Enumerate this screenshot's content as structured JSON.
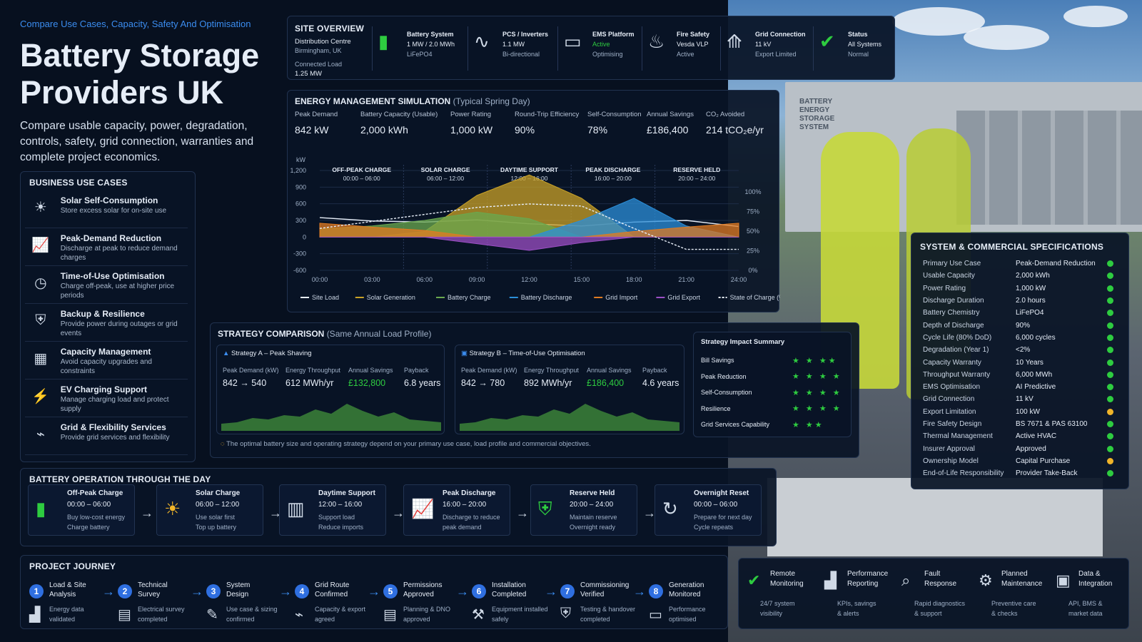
{
  "header": {
    "kicker": "Compare Use Cases, Capacity, Safety And Optimisation",
    "title": "Battery Storage Providers UK",
    "intro": "Compare usable capacity, power, degradation, controls, safety, grid connection, warranties and complete project economics."
  },
  "use_cases": {
    "title": "BUSINESS USE CASES",
    "items": [
      {
        "icon": "sun-icon",
        "title": "Solar Self-Consumption",
        "desc": "Store excess solar for on-site use"
      },
      {
        "icon": "peak-chart-icon",
        "title": "Peak-Demand Reduction",
        "desc": "Discharge at peak to reduce demand charges"
      },
      {
        "icon": "clock-icon",
        "title": "Time-of-Use Optimisation",
        "desc": "Charge off-peak, use at higher price periods"
      },
      {
        "icon": "shield-icon",
        "title": "Backup & Resilience",
        "desc": "Provide power during outages or grid events"
      },
      {
        "icon": "capacity-icon",
        "title": "Capacity Management",
        "desc": "Avoid capacity upgrades and constraints"
      },
      {
        "icon": "ev-charger-icon",
        "title": "EV Charging Support",
        "desc": "Manage charging load and protect supply"
      },
      {
        "icon": "grid-icon",
        "title": "Grid & Flexibility Services",
        "desc": "Provide grid services and flexibility"
      }
    ]
  },
  "site": {
    "title": "SITE OVERVIEW",
    "name": "Distribution Centre",
    "location": "Birmingham, UK",
    "load_label": "Connected Load",
    "load": "1.25 MW",
    "cells": [
      {
        "icon": "battery-icon",
        "title": "Battery System",
        "l1": "1 MW / 2.0 MWh",
        "l2": "LiFePO4"
      },
      {
        "icon": "inverter-icon",
        "title": "PCS / Inverters",
        "l1": "1.1 MW",
        "l2": "Bi-directional"
      },
      {
        "icon": "monitor-icon",
        "title": "EMS Platform",
        "l1": "Active",
        "l2": "Optimising"
      },
      {
        "icon": "fire-icon",
        "title": "Fire Safety",
        "l1": "Vesda VLP",
        "l2": "Active"
      },
      {
        "icon": "pylon-icon",
        "title": "Grid Connection",
        "l1": "11 kV",
        "l2": "Export Limited"
      },
      {
        "icon": "check-circle-icon",
        "title": "Status",
        "l1": "All Systems",
        "l2": "Normal"
      }
    ]
  },
  "sim": {
    "title": "ENERGY MANAGEMENT SIMULATION",
    "subtitle": "(Typical Spring Day)",
    "metrics": [
      {
        "label": "Peak Demand",
        "value": "842 kW"
      },
      {
        "label": "Battery Capacity (Usable)",
        "value": "2,000 kWh"
      },
      {
        "label": "Power Rating",
        "value": "1,000 kW"
      },
      {
        "label": "Round-Trip Efficiency",
        "value": "90%"
      },
      {
        "label": "Self-Consumption",
        "value": "78%"
      },
      {
        "label": "Annual Savings",
        "value": "£186,400"
      },
      {
        "label": "CO₂ Avoided",
        "value": "214 tCO₂e/yr"
      }
    ],
    "phases": [
      {
        "name": "OFF-PEAK CHARGE",
        "time": "00:00 – 06:00"
      },
      {
        "name": "SOLAR CHARGE",
        "time": "06:00 – 12:00"
      },
      {
        "name": "DAYTIME SUPPORT",
        "time": "12:00 – 16:00"
      },
      {
        "name": "PEAK DISCHARGE",
        "time": "16:00 – 20:00"
      },
      {
        "name": "RESERVE HELD",
        "time": "20:00 – 24:00"
      }
    ],
    "legend": [
      "Site Load",
      "Solar Generation",
      "Battery Charge",
      "Battery Discharge",
      "Grid Import",
      "Grid Export",
      "State of Charge (%)"
    ]
  },
  "chart_data": {
    "type": "area",
    "ylabel": "kW",
    "ylim": [
      -600,
      1200
    ],
    "yticks": [
      "1,200",
      "900",
      "600",
      "300",
      "0",
      "-300",
      "-600"
    ],
    "y2ticks": [
      "100%",
      "75%",
      "50%",
      "25%",
      "0%"
    ],
    "x": [
      "00:00",
      "03:00",
      "06:00",
      "09:00",
      "12:00",
      "15:00",
      "18:00",
      "21:00",
      "24:00"
    ],
    "series": [
      {
        "name": "Site Load",
        "color": "#e6edf7",
        "values": [
          350,
          290,
          270,
          310,
          240,
          200,
          270,
          300,
          190
        ]
      },
      {
        "name": "Solar Generation",
        "color": "#c9a227",
        "values": [
          0,
          0,
          100,
          750,
          1120,
          700,
          0,
          0,
          0
        ]
      },
      {
        "name": "Battery Charge",
        "color": "#6aa84f",
        "values": [
          150,
          200,
          300,
          450,
          330,
          0,
          0,
          0,
          0
        ]
      },
      {
        "name": "Battery Discharge",
        "color": "#2b8fd9",
        "values": [
          0,
          0,
          0,
          0,
          0,
          300,
          700,
          200,
          0
        ]
      },
      {
        "name": "Grid Import",
        "color": "#e07b22",
        "values": [
          250,
          180,
          120,
          0,
          0,
          0,
          100,
          180,
          250
        ]
      },
      {
        "name": "Grid Export",
        "color": "#9b4fc4",
        "values": [
          0,
          0,
          0,
          -120,
          -240,
          -100,
          0,
          0,
          0
        ]
      },
      {
        "name": "State of Charge (%)",
        "color": "#e6edf7",
        "values": [
          60,
          70,
          80,
          90,
          95,
          92,
          60,
          30,
          30
        ]
      }
    ]
  },
  "strategy": {
    "title": "STRATEGY COMPARISON",
    "subtitle": "(Same Annual Load Profile)",
    "a": {
      "title": "Strategy A – Peak Shaving",
      "labels": [
        "Peak Demand (kW)",
        "Energy Throughput",
        "Annual Savings",
        "Payback"
      ],
      "values": [
        "842 → 540",
        "612 MWh/yr",
        "£132,800",
        "6.8 years"
      ]
    },
    "b": {
      "title": "Strategy B – Time-of-Use Optimisation",
      "labels": [
        "Peak Demand (kW)",
        "Energy Throughput",
        "Annual Savings",
        "Payback"
      ],
      "values": [
        "842 → 780",
        "892 MWh/yr",
        "£186,400",
        "4.6 years"
      ]
    },
    "note": "The optimal battery size and operating strategy depend on your primary use case, load profile and commercial objectives.",
    "impact": {
      "title": "Strategy Impact Summary",
      "rows": [
        {
          "label": "Bill Savings",
          "stars": "★ ★ ★★"
        },
        {
          "label": "Peak Reduction",
          "stars": "★ ★ ★ ★"
        },
        {
          "label": "Self-Consumption",
          "stars": "★ ★ ★ ★"
        },
        {
          "label": "Resilience",
          "stars": "★ ★ ★ ★"
        },
        {
          "label": "Grid Services Capability",
          "stars": "★ ★★"
        }
      ]
    }
  },
  "specs": {
    "title": "SYSTEM & COMMERCIAL SPECIFICATIONS",
    "rows": [
      {
        "k": "Primary Use Case",
        "v": "Peak-Demand Reduction",
        "s": "ok"
      },
      {
        "k": "Usable Capacity",
        "v": "2,000 kWh",
        "s": "ok"
      },
      {
        "k": "Power Rating",
        "v": "1,000 kW",
        "s": "ok"
      },
      {
        "k": "Discharge Duration",
        "v": "2.0 hours",
        "s": "ok"
      },
      {
        "k": "Battery Chemistry",
        "v": "LiFePO4",
        "s": "ok"
      },
      {
        "k": "Depth of Discharge",
        "v": "90%",
        "s": "ok"
      },
      {
        "k": "Cycle Life (80% DoD)",
        "v": "6,000 cycles",
        "s": "ok"
      },
      {
        "k": "Degradation (Year 1)",
        "v": "<2%",
        "s": "ok"
      },
      {
        "k": "Capacity Warranty",
        "v": "10 Years",
        "s": "ok"
      },
      {
        "k": "Throughput Warranty",
        "v": "6,000 MWh",
        "s": "ok"
      },
      {
        "k": "EMS Optimisation",
        "v": "AI Predictive",
        "s": "ok"
      },
      {
        "k": "Grid Connection",
        "v": "11 kV",
        "s": "ok"
      },
      {
        "k": "Export Limitation",
        "v": "100 kW",
        "s": "warn"
      },
      {
        "k": "Fire Safety Design",
        "v": "BS 7671 & PAS 63100",
        "s": "ok"
      },
      {
        "k": "Thermal Management",
        "v": "Active HVAC",
        "s": "ok"
      },
      {
        "k": "Insurer Approval",
        "v": "Approved",
        "s": "ok"
      },
      {
        "k": "Ownership Model",
        "v": "Capital Purchase",
        "s": "warn"
      },
      {
        "k": "End-of-Life Responsibility",
        "v": "Provider Take-Back",
        "s": "ok"
      }
    ]
  },
  "operation": {
    "title": "BATTERY OPERATION THROUGH THE DAY",
    "steps": [
      {
        "icon": "battery-icon",
        "title": "Off-Peak Charge",
        "time": "00:00 – 06:00",
        "l1": "Buy low-cost energy",
        "l2": "Charge battery"
      },
      {
        "icon": "sun-icon",
        "title": "Solar Charge",
        "time": "06:00 – 12:00",
        "l1": "Use solar first",
        "l2": "Top up battery"
      },
      {
        "icon": "building-icon",
        "title": "Daytime Support",
        "time": "12:00 – 16:00",
        "l1": "Support load",
        "l2": "Reduce imports"
      },
      {
        "icon": "peak-chart-icon",
        "title": "Peak Discharge",
        "time": "16:00 – 20:00",
        "l1": "Discharge to reduce",
        "l2": "peak demand"
      },
      {
        "icon": "shield-check-icon",
        "title": "Reserve Held",
        "time": "20:00 – 24:00",
        "l1": "Maintain reserve",
        "l2": "Overnight ready"
      },
      {
        "icon": "reset-icon",
        "title": "Overnight Reset",
        "time": "00:00 – 06:00",
        "l1": "Prepare for next day",
        "l2": "Cycle repeats"
      }
    ]
  },
  "journey": {
    "title": "PROJECT JOURNEY",
    "steps": [
      {
        "n": "1",
        "t1": "Load & Site",
        "t2": "Analysis",
        "d1": "Energy data",
        "d2": "validated",
        "icon": "chart-icon"
      },
      {
        "n": "2",
        "t1": "Technical",
        "t2": "Survey",
        "d1": "Electrical survey",
        "d2": "completed",
        "icon": "clipboard-icon"
      },
      {
        "n": "3",
        "t1": "System",
        "t2": "Design",
        "d1": "Use case & sizing",
        "d2": "confirmed",
        "icon": "design-icon"
      },
      {
        "n": "4",
        "t1": "Grid Route",
        "t2": "Confirmed",
        "d1": "Capacity & export",
        "d2": "agreed",
        "icon": "grid-icon"
      },
      {
        "n": "5",
        "t1": "Permissions",
        "t2": "Approved",
        "d1": "Planning & DNO",
        "d2": "approved",
        "icon": "document-icon"
      },
      {
        "n": "6",
        "t1": "Installation",
        "t2": "Completed",
        "d1": "Equipment installed",
        "d2": "safely",
        "icon": "crane-icon"
      },
      {
        "n": "7",
        "t1": "Commissioning",
        "t2": "Verified",
        "d1": "Testing & handover",
        "d2": "completed",
        "icon": "shield-check-icon"
      },
      {
        "n": "8",
        "t1": "Generation",
        "t2": "Monitored",
        "d1": "Performance",
        "d2": "optimised",
        "icon": "monitor-icon"
      }
    ]
  },
  "services": [
    {
      "icon": "check-circle-icon",
      "t1": "Remote",
      "t2": "Monitoring",
      "d1": "24/7 system",
      "d2": "visibility"
    },
    {
      "icon": "chart-icon",
      "t1": "Performance",
      "t2": "Reporting",
      "d1": "KPIs, savings",
      "d2": "& alerts"
    },
    {
      "icon": "search-icon",
      "t1": "Fault",
      "t2": "Response",
      "d1": "Rapid diagnostics",
      "d2": "& support"
    },
    {
      "icon": "gear-icon",
      "t1": "Planned",
      "t2": "Maintenance",
      "d1": "Preventive care",
      "d2": "& checks"
    },
    {
      "icon": "data-icon",
      "t1": "Data &",
      "t2": "Integration",
      "d1": "API, BMS &",
      "d2": "market data"
    }
  ],
  "photo": {
    "container_label": "BATTERY ENERGY STORAGE SYSTEM"
  }
}
